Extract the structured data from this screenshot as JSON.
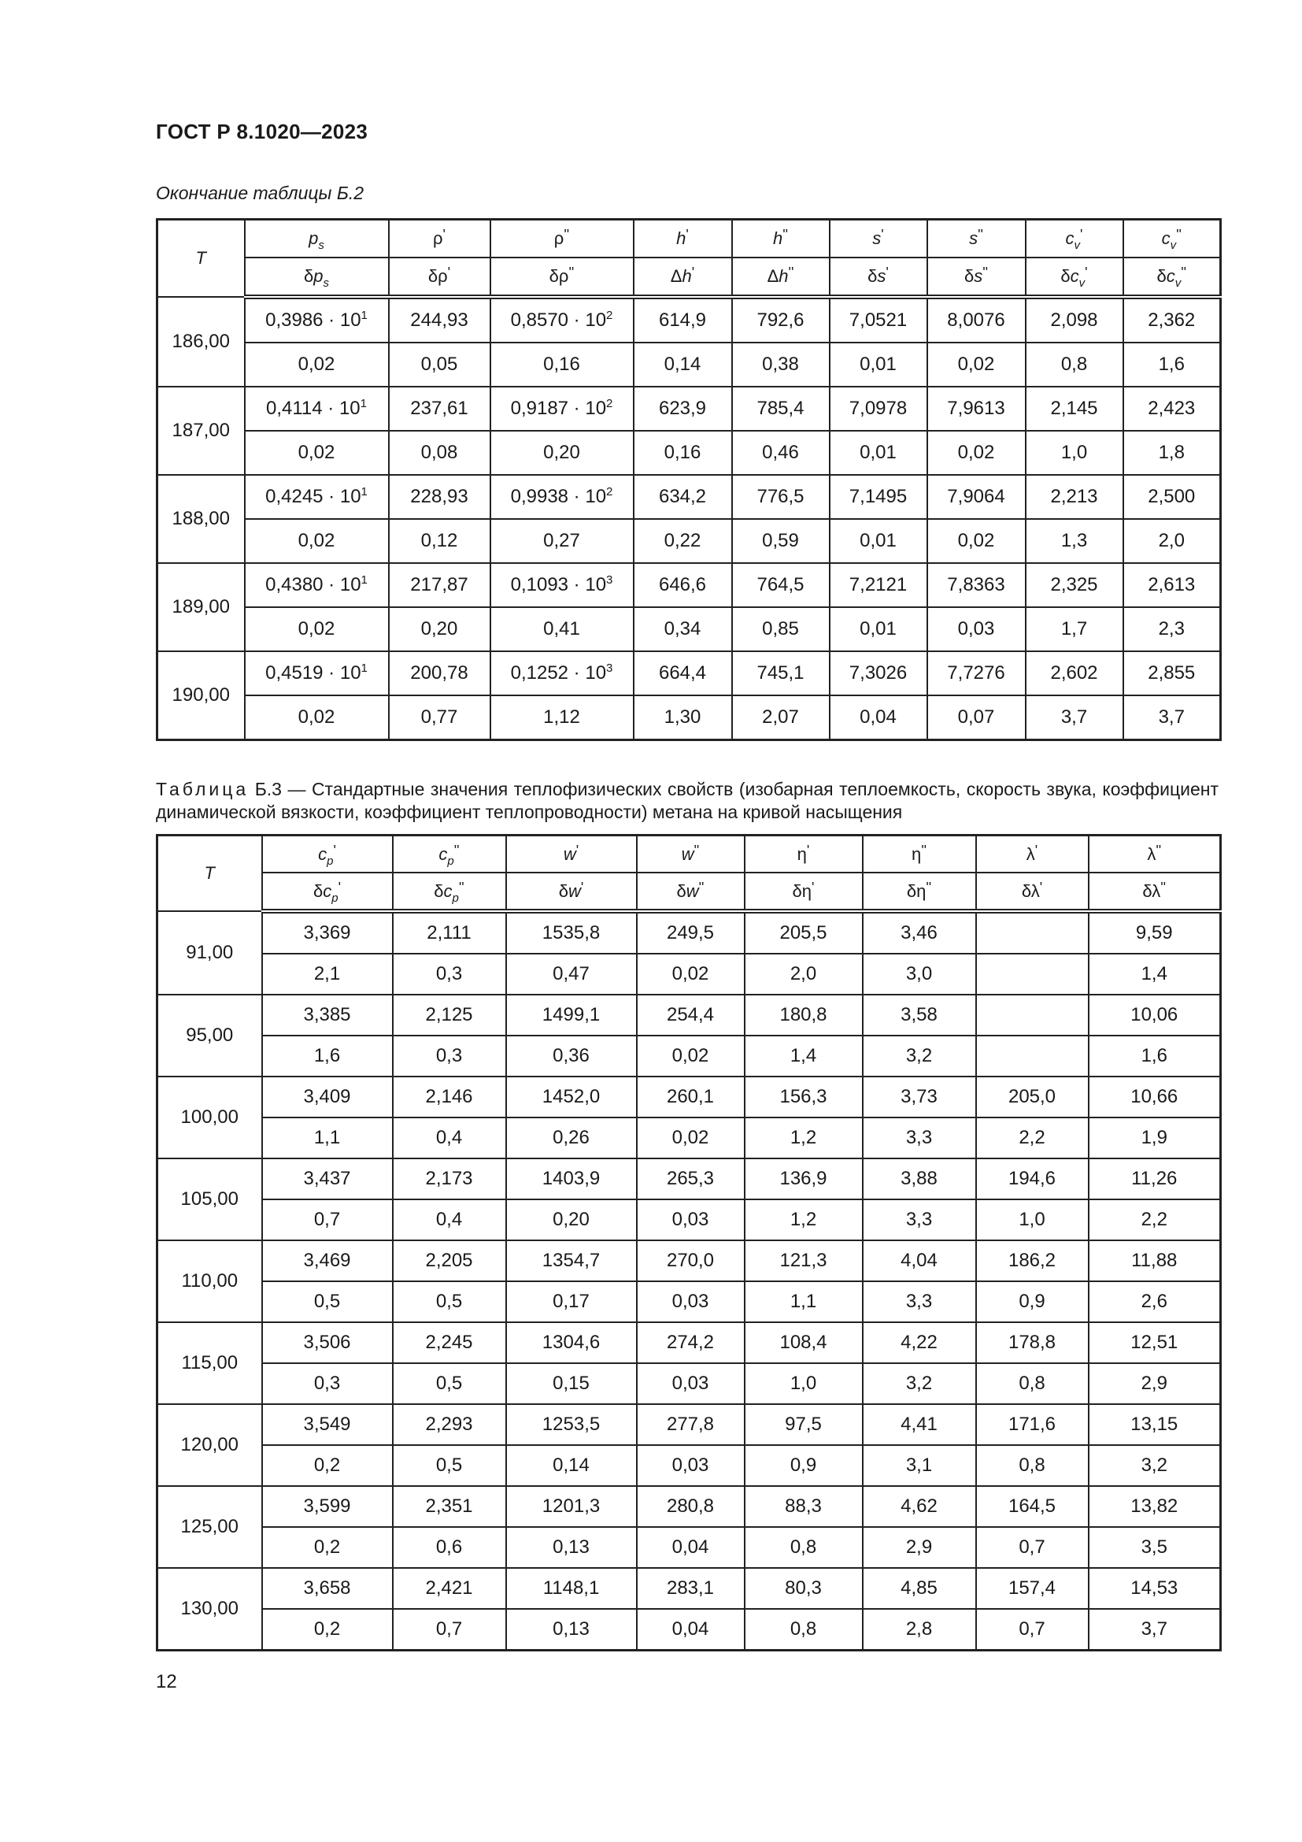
{
  "document_header": "ГОСТ Р 8.1020—2023",
  "table_b2": {
    "continuation_label": "Окончание таблицы Б.2",
    "row_header": "T",
    "columns": [
      {
        "top": {
          "pre": "",
          "base": "p",
          "italic": true,
          "sub": "s",
          "mark": ""
        },
        "bottom": {
          "pre": "δ",
          "base": "p",
          "italic": true,
          "sub": "s",
          "mark": ""
        }
      },
      {
        "top": {
          "pre": "",
          "base": "ρ",
          "italic": false,
          "sub": "",
          "mark": "'"
        },
        "bottom": {
          "pre": "δ",
          "base": "ρ",
          "italic": false,
          "sub": "",
          "mark": "'"
        }
      },
      {
        "top": {
          "pre": "",
          "base": "ρ",
          "italic": false,
          "sub": "",
          "mark": "''"
        },
        "bottom": {
          "pre": "δ",
          "base": "ρ",
          "italic": false,
          "sub": "",
          "mark": "''"
        }
      },
      {
        "top": {
          "pre": "",
          "base": "h",
          "italic": true,
          "sub": "",
          "mark": "'"
        },
        "bottom": {
          "pre": "Δ",
          "base": "h",
          "italic": true,
          "sub": "",
          "mark": "'"
        }
      },
      {
        "top": {
          "pre": "",
          "base": "h",
          "italic": true,
          "sub": "",
          "mark": "''"
        },
        "bottom": {
          "pre": "Δ",
          "base": "h",
          "italic": true,
          "sub": "",
          "mark": "''"
        }
      },
      {
        "top": {
          "pre": "",
          "base": "s",
          "italic": true,
          "sub": "",
          "mark": "'"
        },
        "bottom": {
          "pre": "δ",
          "base": "s",
          "italic": true,
          "sub": "",
          "mark": "'"
        }
      },
      {
        "top": {
          "pre": "",
          "base": "s",
          "italic": true,
          "sub": "",
          "mark": "''"
        },
        "bottom": {
          "pre": "δ",
          "base": "s",
          "italic": true,
          "sub": "",
          "mark": "''"
        }
      },
      {
        "top": {
          "pre": "",
          "base": "c",
          "italic": true,
          "sub": "v",
          "mark": "'"
        },
        "bottom": {
          "pre": "δ",
          "base": "c",
          "italic": true,
          "sub": "v",
          "mark": "'"
        }
      },
      {
        "top": {
          "pre": "",
          "base": "c",
          "italic": true,
          "sub": "v",
          "mark": "''"
        },
        "bottom": {
          "pre": "δ",
          "base": "c",
          "italic": true,
          "sub": "v",
          "mark": "''"
        }
      }
    ],
    "rows": [
      {
        "T": "186,00",
        "values": [
          {
            "m": "0,3986 · 10",
            "e": "1"
          },
          "244,93",
          {
            "m": "0,8570 · 10",
            "e": "2"
          },
          "614,9",
          "792,6",
          "7,0521",
          "8,0076",
          "2,098",
          "2,362"
        ],
        "uncertainties": [
          "0,02",
          "0,05",
          "0,16",
          "0,14",
          "0,38",
          "0,01",
          "0,02",
          "0,8",
          "1,6"
        ]
      },
      {
        "T": "187,00",
        "values": [
          {
            "m": "0,4114 · 10",
            "e": "1"
          },
          "237,61",
          {
            "m": "0,9187 · 10",
            "e": "2"
          },
          "623,9",
          "785,4",
          "7,0978",
          "7,9613",
          "2,145",
          "2,423"
        ],
        "uncertainties": [
          "0,02",
          "0,08",
          "0,20",
          "0,16",
          "0,46",
          "0,01",
          "0,02",
          "1,0",
          "1,8"
        ]
      },
      {
        "T": "188,00",
        "values": [
          {
            "m": "0,4245 · 10",
            "e": "1"
          },
          "228,93",
          {
            "m": "0,9938 · 10",
            "e": "2"
          },
          "634,2",
          "776,5",
          "7,1495",
          "7,9064",
          "2,213",
          "2,500"
        ],
        "uncertainties": [
          "0,02",
          "0,12",
          "0,27",
          "0,22",
          "0,59",
          "0,01",
          "0,02",
          "1,3",
          "2,0"
        ]
      },
      {
        "T": "189,00",
        "values": [
          {
            "m": "0,4380 · 10",
            "e": "1"
          },
          "217,87",
          {
            "m": "0,1093 · 10",
            "e": "3"
          },
          "646,6",
          "764,5",
          "7,2121",
          "7,8363",
          "2,325",
          "2,613"
        ],
        "uncertainties": [
          "0,02",
          "0,20",
          "0,41",
          "0,34",
          "0,85",
          "0,01",
          "0,03",
          "1,7",
          "2,3"
        ]
      },
      {
        "T": "190,00",
        "values": [
          {
            "m": "0,4519 · 10",
            "e": "1"
          },
          "200,78",
          {
            "m": "0,1252 · 10",
            "e": "3"
          },
          "664,4",
          "745,1",
          "7,3026",
          "7,7276",
          "2,602",
          "2,855"
        ],
        "uncertainties": [
          "0,02",
          "0,77",
          "1,12",
          "1,30",
          "2,07",
          "0,04",
          "0,07",
          "3,7",
          "3,7"
        ]
      }
    ]
  },
  "table_b3": {
    "caption_prefix": "Таблица",
    "caption": "Б.3 — Стандартные значения теплофизических свойств (изобарная теплоемкость, скорость звука, коэффициент динамической вязкости, коэффициент теплопроводности) метана на кривой насыщения",
    "row_header": "T",
    "columns": [
      {
        "top": {
          "pre": "",
          "base": "c",
          "italic": true,
          "sub": "p",
          "mark": "'"
        },
        "bottom": {
          "pre": "δ",
          "base": "c",
          "italic": true,
          "sub": "p",
          "mark": "'"
        }
      },
      {
        "top": {
          "pre": "",
          "base": "c",
          "italic": true,
          "sub": "p",
          "mark": "''"
        },
        "bottom": {
          "pre": "δ",
          "base": "c",
          "italic": true,
          "sub": "p",
          "mark": "''"
        }
      },
      {
        "top": {
          "pre": "",
          "base": "w",
          "italic": true,
          "sub": "",
          "mark": "'"
        },
        "bottom": {
          "pre": "δ",
          "base": "w",
          "italic": true,
          "sub": "",
          "mark": "'"
        }
      },
      {
        "top": {
          "pre": "",
          "base": "w",
          "italic": true,
          "sub": "",
          "mark": "''"
        },
        "bottom": {
          "pre": "δ",
          "base": "w",
          "italic": true,
          "sub": "",
          "mark": "''"
        }
      },
      {
        "top": {
          "pre": "",
          "base": "η",
          "italic": false,
          "sub": "",
          "mark": "'"
        },
        "bottom": {
          "pre": "δ",
          "base": "η",
          "italic": false,
          "sub": "",
          "mark": "'"
        }
      },
      {
        "top": {
          "pre": "",
          "base": "η",
          "italic": false,
          "sub": "",
          "mark": "''"
        },
        "bottom": {
          "pre": "δ",
          "base": "η",
          "italic": false,
          "sub": "",
          "mark": "''"
        }
      },
      {
        "top": {
          "pre": "",
          "base": "λ",
          "italic": false,
          "sub": "",
          "mark": "'"
        },
        "bottom": {
          "pre": "δ",
          "base": "λ",
          "italic": false,
          "sub": "",
          "mark": "'"
        }
      },
      {
        "top": {
          "pre": "",
          "base": "λ",
          "italic": false,
          "sub": "",
          "mark": "''"
        },
        "bottom": {
          "pre": "δ",
          "base": "λ",
          "italic": false,
          "sub": "",
          "mark": "''"
        }
      }
    ],
    "rows": [
      {
        "T": "91,00",
        "values": [
          "3,369",
          "2,111",
          "1535,8",
          "249,5",
          "205,5",
          "3,46",
          "",
          "9,59"
        ],
        "uncertainties": [
          "2,1",
          "0,3",
          "0,47",
          "0,02",
          "2,0",
          "3,0",
          "",
          "1,4"
        ]
      },
      {
        "T": "95,00",
        "values": [
          "3,385",
          "2,125",
          "1499,1",
          "254,4",
          "180,8",
          "3,58",
          "",
          "10,06"
        ],
        "uncertainties": [
          "1,6",
          "0,3",
          "0,36",
          "0,02",
          "1,4",
          "3,2",
          "",
          "1,6"
        ]
      },
      {
        "T": "100,00",
        "values": [
          "3,409",
          "2,146",
          "1452,0",
          "260,1",
          "156,3",
          "3,73",
          "205,0",
          "10,66"
        ],
        "uncertainties": [
          "1,1",
          "0,4",
          "0,26",
          "0,02",
          "1,2",
          "3,3",
          "2,2",
          "1,9"
        ]
      },
      {
        "T": "105,00",
        "values": [
          "3,437",
          "2,173",
          "1403,9",
          "265,3",
          "136,9",
          "3,88",
          "194,6",
          "11,26"
        ],
        "uncertainties": [
          "0,7",
          "0,4",
          "0,20",
          "0,03",
          "1,2",
          "3,3",
          "1,0",
          "2,2"
        ]
      },
      {
        "T": "110,00",
        "values": [
          "3,469",
          "2,205",
          "1354,7",
          "270,0",
          "121,3",
          "4,04",
          "186,2",
          "11,88"
        ],
        "uncertainties": [
          "0,5",
          "0,5",
          "0,17",
          "0,03",
          "1,1",
          "3,3",
          "0,9",
          "2,6"
        ]
      },
      {
        "T": "115,00",
        "values": [
          "3,506",
          "2,245",
          "1304,6",
          "274,2",
          "108,4",
          "4,22",
          "178,8",
          "12,51"
        ],
        "uncertainties": [
          "0,3",
          "0,5",
          "0,15",
          "0,03",
          "1,0",
          "3,2",
          "0,8",
          "2,9"
        ]
      },
      {
        "T": "120,00",
        "values": [
          "3,549",
          "2,293",
          "1253,5",
          "277,8",
          "97,5",
          "4,41",
          "171,6",
          "13,15"
        ],
        "uncertainties": [
          "0,2",
          "0,5",
          "0,14",
          "0,03",
          "0,9",
          "3,1",
          "0,8",
          "3,2"
        ]
      },
      {
        "T": "125,00",
        "values": [
          "3,599",
          "2,351",
          "1201,3",
          "280,8",
          "88,3",
          "4,62",
          "164,5",
          "13,82"
        ],
        "uncertainties": [
          "0,2",
          "0,6",
          "0,13",
          "0,04",
          "0,8",
          "2,9",
          "0,7",
          "3,5"
        ]
      },
      {
        "T": "130,00",
        "values": [
          "3,658",
          "2,421",
          "1148,1",
          "283,1",
          "80,3",
          "4,85",
          "157,4",
          "14,53"
        ],
        "uncertainties": [
          "0,2",
          "0,7",
          "0,13",
          "0,04",
          "0,8",
          "2,8",
          "0,7",
          "3,7"
        ]
      }
    ]
  },
  "page_number": "12"
}
